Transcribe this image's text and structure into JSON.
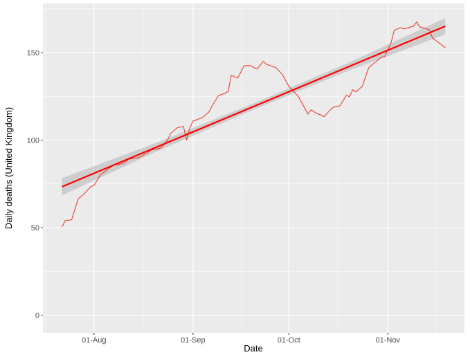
{
  "chart_data": {
    "type": "line",
    "title": "",
    "xlabel": "Date",
    "ylabel": "Daily deaths (United Kingdom)",
    "x_ticks": [
      "01-Aug",
      "01-Sep",
      "01-Oct",
      "01-Nov"
    ],
    "y_ticks": [
      0,
      50,
      100,
      150
    ],
    "xlim": [
      "16-Jul",
      "25-Nov"
    ],
    "ylim": [
      -10,
      178
    ],
    "grid": true,
    "legend": "none",
    "colors": {
      "panel": "#ebebeb",
      "grid": "#ffffff",
      "series": "#e8301c",
      "fit": "#ff0000",
      "band": "#c8c8c8"
    },
    "series": [
      {
        "type": "line",
        "points": [
          [
            "22-Jul",
            50.5
          ],
          [
            "23-Jul",
            54.1
          ],
          [
            "25-Jul",
            54.5
          ],
          [
            "27-Jul",
            66.3
          ],
          [
            "29-Jul",
            69.5
          ],
          [
            "31-Jul",
            73.4
          ],
          [
            "01-Aug",
            74.2
          ],
          [
            "03-Aug",
            80.1
          ],
          [
            "07-Aug",
            85.7
          ],
          [
            "10-Aug",
            86.5
          ],
          [
            "12-Aug",
            89.2
          ],
          [
            "15-Aug",
            90.0
          ],
          [
            "17-Aug",
            92.0
          ],
          [
            "19-Aug",
            94.4
          ],
          [
            "22-Aug",
            95.5
          ],
          [
            "24-Aug",
            99.9
          ],
          [
            "25-Aug",
            103.8
          ],
          [
            "27-Aug",
            107.0
          ],
          [
            "29-Aug",
            107.8
          ],
          [
            "30-Aug",
            99.9
          ],
          [
            "31-Aug",
            107.0
          ],
          [
            "01-Sep",
            110.9
          ],
          [
            "04-Sep",
            112.9
          ],
          [
            "06-Sep",
            116.1
          ],
          [
            "07-Sep",
            119.6
          ],
          [
            "09-Sep",
            125.5
          ],
          [
            "11-Sep",
            126.7
          ],
          [
            "12-Sep",
            127.9
          ],
          [
            "13-Sep",
            137.0
          ],
          [
            "15-Sep",
            135.4
          ],
          [
            "17-Sep",
            142.5
          ],
          [
            "19-Sep",
            142.5
          ],
          [
            "21-Sep",
            140.5
          ],
          [
            "23-Sep",
            144.9
          ],
          [
            "24-Sep",
            143.3
          ],
          [
            "27-Sep",
            141.3
          ],
          [
            "29-Sep",
            137.4
          ],
          [
            "01-Oct",
            130.7
          ],
          [
            "04-Oct",
            124.8
          ],
          [
            "07-Oct",
            114.9
          ],
          [
            "08-Oct",
            117.3
          ],
          [
            "10-Oct",
            114.9
          ],
          [
            "11-Oct",
            114.5
          ],
          [
            "12-Oct",
            113.3
          ],
          [
            "14-Oct",
            117.3
          ],
          [
            "15-Oct",
            118.8
          ],
          [
            "17-Oct",
            119.6
          ],
          [
            "19-Oct",
            125.5
          ],
          [
            "20-Oct",
            124.8
          ],
          [
            "21-Oct",
            128.7
          ],
          [
            "22-Oct",
            127.5
          ],
          [
            "24-Oct",
            130.7
          ],
          [
            "26-Oct",
            141.3
          ],
          [
            "27-Oct",
            142.9
          ],
          [
            "30-Oct",
            147.3
          ],
          [
            "31-Oct",
            147.7
          ],
          [
            "02-Nov",
            155.5
          ],
          [
            "03-Nov",
            162.7
          ],
          [
            "05-Nov",
            164.2
          ],
          [
            "06-Nov",
            163.4
          ],
          [
            "09-Nov",
            165.0
          ],
          [
            "10-Nov",
            167.4
          ],
          [
            "11-Nov",
            164.6
          ],
          [
            "14-Nov",
            163.0
          ],
          [
            "15-Nov",
            158.3
          ],
          [
            "17-Nov",
            155.5
          ],
          [
            "19-Nov",
            152.8
          ]
        ]
      },
      {
        "type": "linear-fit",
        "points": [
          [
            "22-Jul",
            73.4
          ],
          [
            "19-Nov",
            165.0
          ]
        ],
        "se_band": [
          [
            "22-Jul",
            68.5,
            78.3
          ],
          [
            "21-Aug",
            93.8,
            98.8
          ],
          [
            "20-Sep",
            117.4,
            121.0
          ],
          [
            "20-Oct",
            139.8,
            144.4
          ],
          [
            "19-Nov",
            160.3,
            169.7
          ]
        ]
      }
    ]
  }
}
